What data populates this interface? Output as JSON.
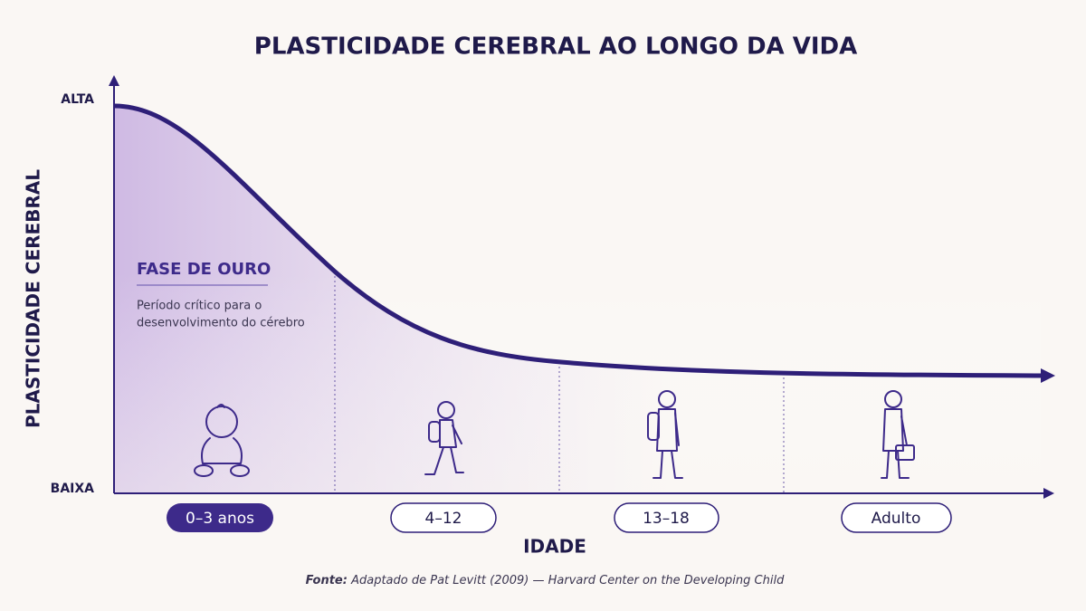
{
  "title": "PLASTICIDADE CEREBRAL AO LONGO DA VIDA",
  "y_axis": {
    "label": "PLASTICIDADE CEREBRAL",
    "high": "ALTA",
    "low": "BAIXA"
  },
  "callout": {
    "title": "FASE DE OURO",
    "lines": [
      "Período crítico para o",
      "desenvolvimento do cérebro"
    ]
  },
  "stages": [
    "0–3 anos",
    "4–12",
    "13–18",
    "Adulto"
  ],
  "x_axis": {
    "label": "IDADE"
  },
  "source": {
    "prefix": "Fonte:",
    "text": "Adaptado de Pat Levitt (2009) — Harvard Center on the Developing Child"
  }
}
